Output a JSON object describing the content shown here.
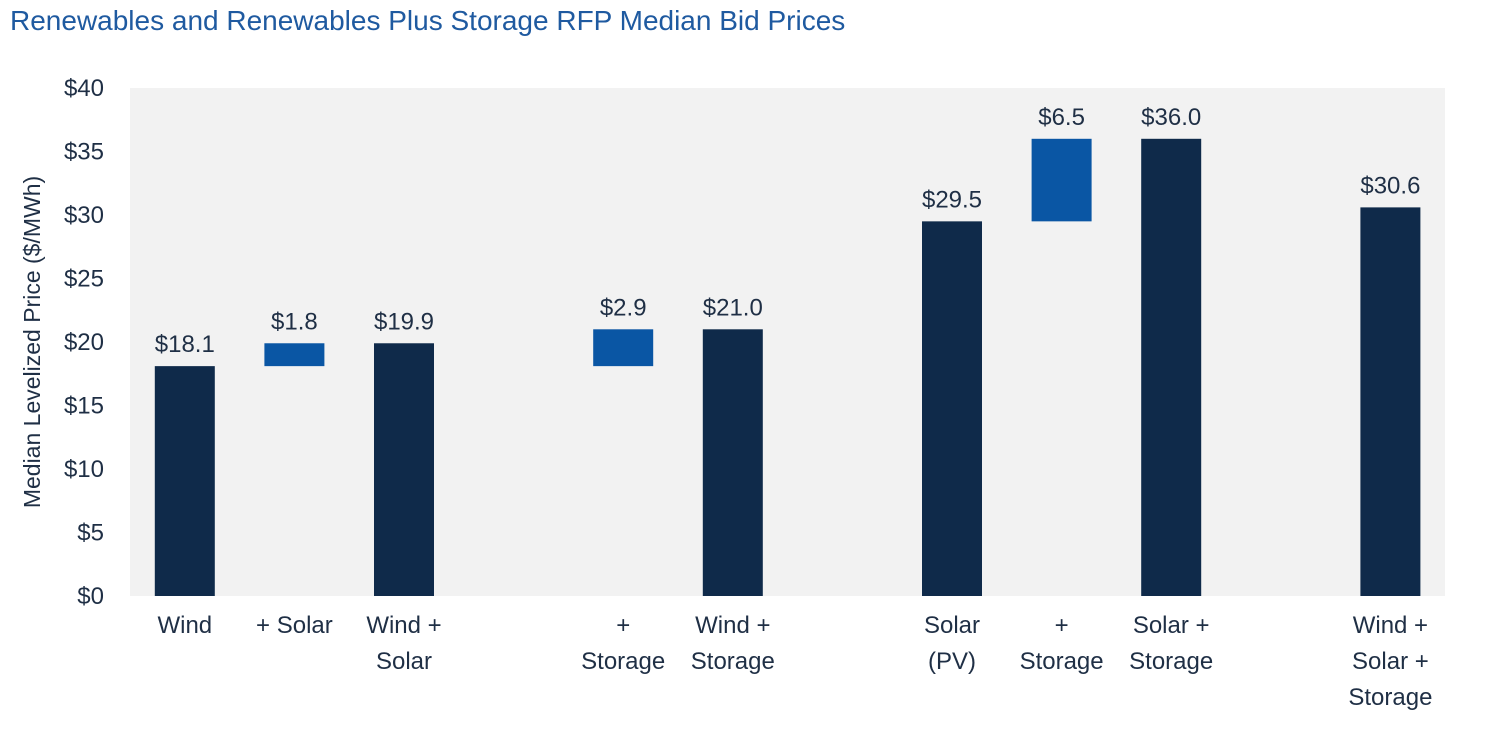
{
  "chart_data": {
    "type": "bar",
    "subtype": "waterfall",
    "title": "Renewables and Renewables Plus Storage RFP Median Bid Prices",
    "xlabel": "",
    "ylabel": "Median Levelized Price ($/MWh)",
    "ylim": [
      0,
      40
    ],
    "yticks": [
      0,
      5,
      10,
      15,
      20,
      25,
      30,
      35,
      40
    ],
    "ytick_labels": [
      "$0",
      "$5",
      "$10",
      "$15",
      "$20",
      "$25",
      "$30",
      "$35",
      "$40"
    ],
    "grid": false,
    "legend": "none",
    "colors": {
      "total": "#0f2a4a",
      "increment": "#0a56a4",
      "plot_background": "#f2f2f2"
    },
    "bars": [
      {
        "category": "Wind",
        "lines": [
          "Wind"
        ],
        "kind": "total",
        "base": 0,
        "value": 18.1,
        "label": "$18.1"
      },
      {
        "category": "+ Solar",
        "lines": [
          "+ Solar"
        ],
        "kind": "increment",
        "base": 18.1,
        "value": 1.8,
        "label": "$1.8"
      },
      {
        "category": "Wind + Solar",
        "lines": [
          "Wind +",
          "Solar"
        ],
        "kind": "total",
        "base": 0,
        "value": 19.9,
        "label": "$19.9"
      },
      {
        "category": "+ Storage",
        "lines": [
          "+",
          "Storage"
        ],
        "kind": "increment",
        "base": 18.1,
        "value": 2.9,
        "label": "$2.9"
      },
      {
        "category": "Wind + Storage",
        "lines": [
          "Wind +",
          "Storage"
        ],
        "kind": "total",
        "base": 0,
        "value": 21.0,
        "label": "$21.0"
      },
      {
        "category": "Solar (PV)",
        "lines": [
          "Solar",
          "(PV)"
        ],
        "kind": "total",
        "base": 0,
        "value": 29.5,
        "label": "$29.5"
      },
      {
        "category": "+ Storage",
        "lines": [
          "+",
          "Storage"
        ],
        "kind": "increment",
        "base": 29.5,
        "value": 6.5,
        "label": "$6.5"
      },
      {
        "category": "Solar + Storage",
        "lines": [
          "Solar +",
          "Storage"
        ],
        "kind": "total",
        "base": 0,
        "value": 36.0,
        "label": "$36.0"
      },
      {
        "category": "Wind + Solar + Storage",
        "lines": [
          "Wind +",
          "Solar +",
          "Storage"
        ],
        "kind": "total",
        "base": 0,
        "value": 30.6,
        "label": "$30.6"
      }
    ]
  }
}
